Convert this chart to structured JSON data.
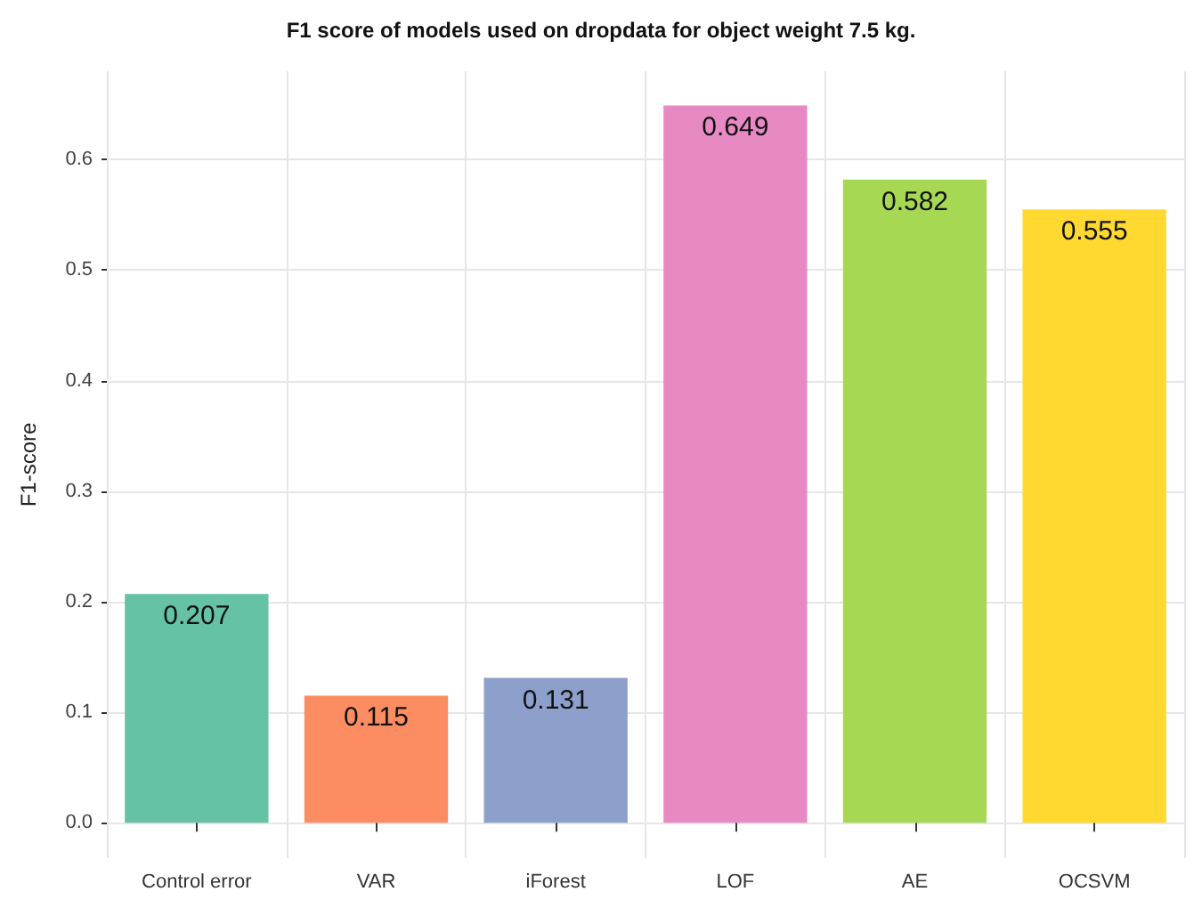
{
  "chart_data": {
    "type": "bar",
    "title": "F1 score of models used on dropdata for object weight 7.5 kg.",
    "ylabel": "F1-score",
    "categories": [
      "Control error",
      "VAR",
      "iForest",
      "LOF",
      "AE",
      "OCSVM"
    ],
    "values": [
      0.207,
      0.115,
      0.131,
      0.649,
      0.582,
      0.555
    ],
    "colors": [
      "#66c2a5",
      "#fc8d62",
      "#8da0cb",
      "#e78ac3",
      "#a6d854",
      "#ffd92f"
    ],
    "ylim": [
      -0.032,
      0.68
    ],
    "yticks": [
      {
        "value": 0,
        "label": "0.0"
      },
      0.1,
      0.2,
      0.3,
      0.4,
      0.5,
      0.6
    ],
    "grid": true,
    "data_labels": true
  }
}
